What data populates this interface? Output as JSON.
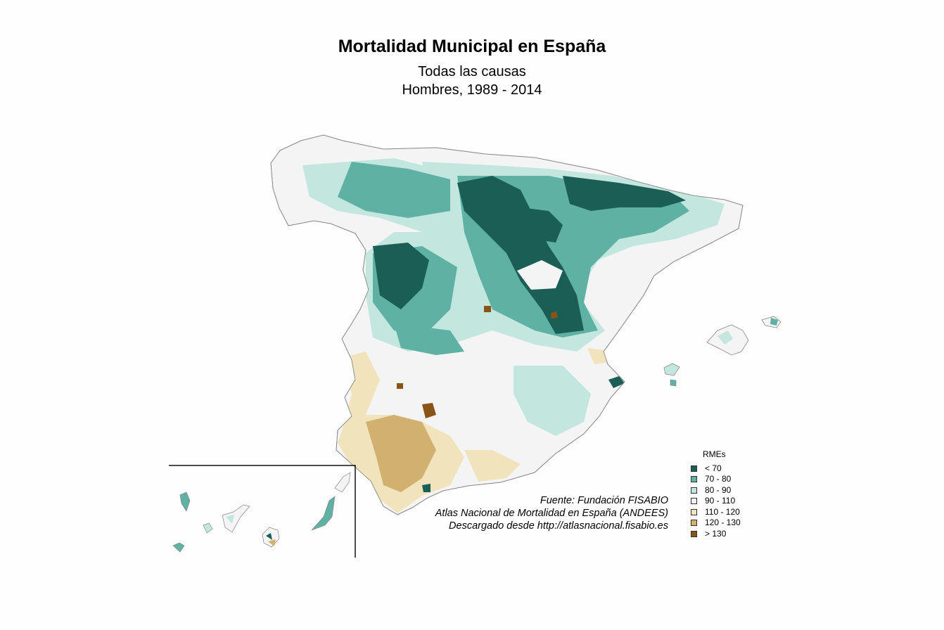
{
  "title": "Mortalidad Municipal en España",
  "subtitle_line1": "Todas las causas",
  "subtitle_line2": "Hombres, 1989 - 2014",
  "source": {
    "line1": "Fuente: Fundación FISABIO",
    "line2": "Atlas Nacional de Mortalidad en España (ANDEES)",
    "line3": "Descargado desde http://atlasnacional.fisabio.es"
  },
  "legend": {
    "title": "RMEs",
    "items": [
      {
        "label": "< 70",
        "color": "#1b5e55"
      },
      {
        "label": "70 - 80",
        "color": "#5fb1a4"
      },
      {
        "label": "80 - 90",
        "color": "#c3e6df"
      },
      {
        "label": "90 - 110",
        "color": "#f4f4f4"
      },
      {
        "label": "110 - 120",
        "color": "#f1e3bb"
      },
      {
        "label": "120 - 130",
        "color": "#d2b070"
      },
      {
        "label": "> 130",
        "color": "#8a5419"
      }
    ]
  }
}
